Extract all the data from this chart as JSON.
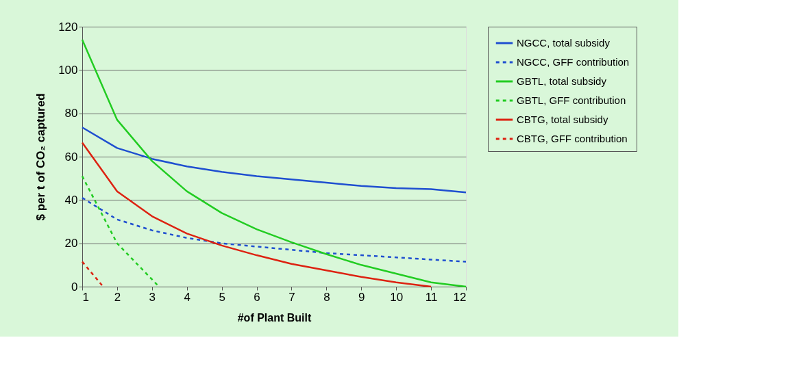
{
  "chart_data": {
    "type": "line",
    "xlabel": "#of Plant Built",
    "ylabel": "$ per t of CO₂ captured",
    "x": [
      1,
      2,
      3,
      4,
      5,
      6,
      7,
      8,
      9,
      10,
      11,
      12
    ],
    "xlim": [
      1,
      12
    ],
    "xticks": [
      1,
      2,
      3,
      4,
      5,
      6,
      7,
      8,
      9,
      10,
      11,
      12
    ],
    "ylim": [
      0,
      120
    ],
    "yticks": [
      0,
      20,
      40,
      60,
      80,
      100,
      120
    ],
    "grid": "y",
    "legend": "right",
    "marker": "none",
    "series": [
      {
        "name": "NGCC, total subsidy",
        "color": "#1f4fd0",
        "line_style": "solid",
        "values": [
          73.5,
          64,
          59,
          55.5,
          53,
          51,
          49.5,
          48,
          46.5,
          45.5,
          45,
          43.5
        ]
      },
      {
        "name": "NGCC, GFF contribution",
        "color": "#1f4fd0",
        "line_style": "dashed",
        "values": [
          41,
          31,
          26,
          22.5,
          20,
          18.5,
          17,
          15.5,
          14.5,
          13.5,
          12.5,
          11.5
        ]
      },
      {
        "name": "GBTL, total subsidy",
        "color": "#22cc22",
        "line_style": "solid",
        "values": [
          114,
          77,
          58,
          44,
          34,
          26.5,
          20.5,
          15,
          10,
          6,
          2,
          0
        ]
      },
      {
        "name": "GBTL, GFF contribution",
        "color": "#22cc22",
        "line_style": "dashed",
        "x": [
          1,
          2,
          3.2
        ],
        "values": [
          51,
          20,
          0
        ]
      },
      {
        "name": "CBTG, total subsidy",
        "color": "#dd2211",
        "line_style": "solid",
        "x": [
          1,
          2,
          3,
          4,
          5,
          6,
          7,
          8,
          9,
          10,
          11
        ],
        "values": [
          66.5,
          44,
          32.5,
          24.5,
          19,
          14.5,
          10.5,
          7.5,
          4.5,
          2,
          0
        ]
      },
      {
        "name": "CBTG, GFF contribution",
        "color": "#dd2211",
        "line_style": "dashed",
        "x": [
          1,
          1.6
        ],
        "values": [
          11.5,
          0
        ]
      }
    ]
  }
}
